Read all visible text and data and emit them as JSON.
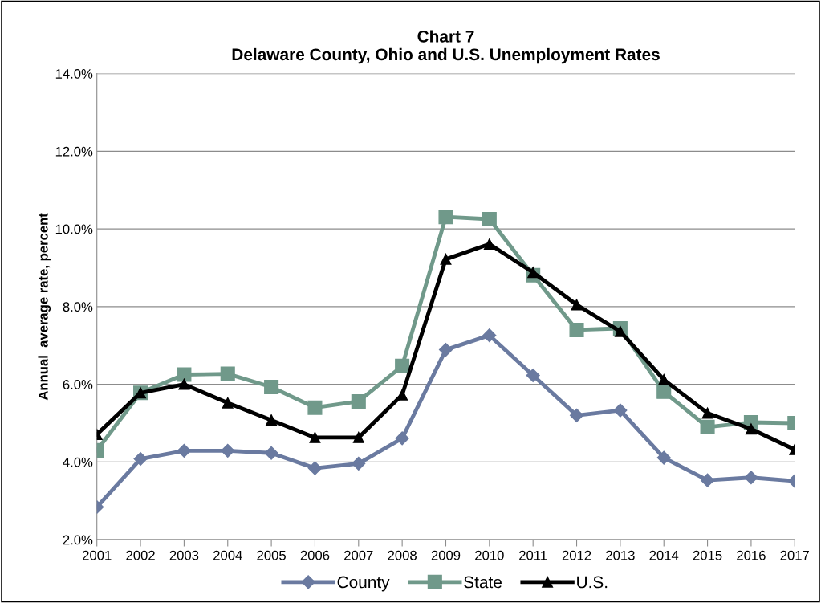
{
  "chart_data": {
    "type": "line",
    "title": "Chart 7\nDelaware County, Ohio and U.S. Unemployment Rates",
    "ylabel": "Annual  average rate, percent",
    "categories": [
      "2001",
      "2002",
      "2003",
      "2004",
      "2005",
      "2006",
      "2007",
      "2008",
      "2009",
      "2010",
      "2011",
      "2012",
      "2013",
      "2014",
      "2015",
      "2016",
      "2017"
    ],
    "series": [
      {
        "name": "County",
        "color": "#6a7aa0",
        "marker": "diamond",
        "values": [
          2.84,
          4.08,
          4.29,
          4.29,
          4.23,
          3.84,
          3.96,
          4.61,
          6.89,
          7.26,
          6.23,
          5.2,
          5.33,
          4.11,
          3.53,
          3.6,
          3.51
        ]
      },
      {
        "name": "State",
        "color": "#70998a",
        "marker": "square",
        "values": [
          4.3,
          5.78,
          6.25,
          6.27,
          5.93,
          5.4,
          5.56,
          6.47,
          10.31,
          10.25,
          8.81,
          7.4,
          7.44,
          5.81,
          4.9,
          5.02,
          5.0
        ]
      },
      {
        "name": "U.S.",
        "color": "#000000",
        "marker": "triangle",
        "values": [
          4.71,
          5.78,
          6.0,
          5.52,
          5.08,
          4.63,
          4.63,
          5.73,
          9.22,
          9.61,
          8.88,
          8.05,
          7.36,
          6.12,
          5.26,
          4.85,
          4.32
        ]
      }
    ],
    "ylim": [
      2,
      14
    ],
    "yticks": [
      {
        "value": 2,
        "label": "2.0%"
      },
      {
        "value": 4,
        "label": "4.0%"
      },
      {
        "value": 6,
        "label": "6.0%"
      },
      {
        "value": 8,
        "label": "8.0%"
      },
      {
        "value": 10,
        "label": "10.0%"
      },
      {
        "value": 12,
        "label": "12.0%"
      },
      {
        "value": 14,
        "label": "14.0%"
      }
    ],
    "grid": "y",
    "legend": "bottom",
    "line_style": "solid"
  }
}
